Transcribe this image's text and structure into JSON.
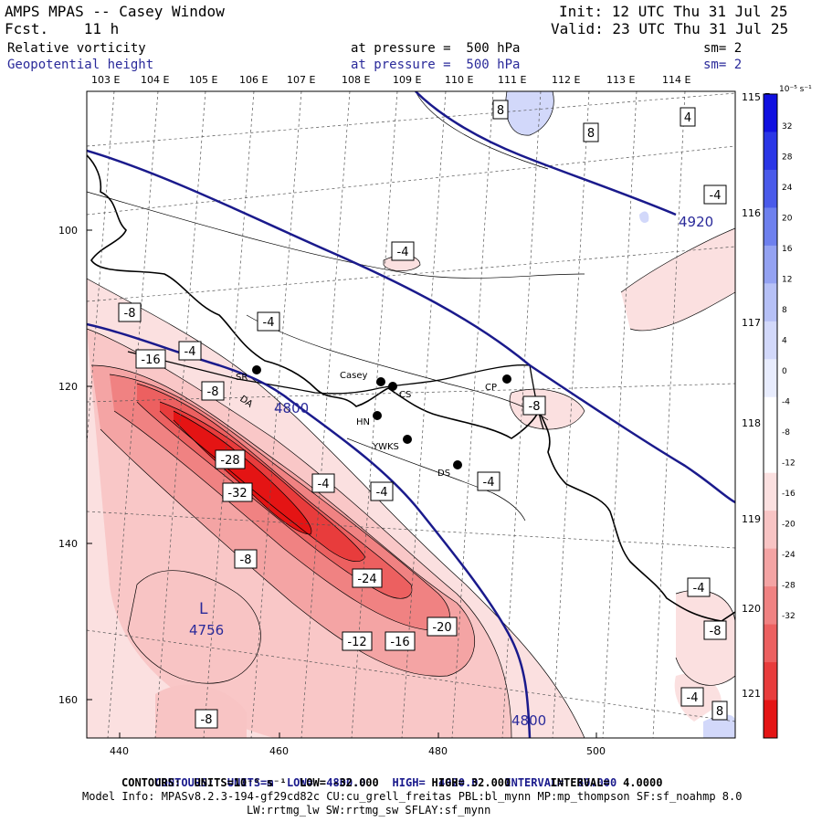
{
  "header": {
    "title": "AMPS MPAS -- Casey Window",
    "fcst": "Fcst.    11 h",
    "init": "Init: 12 UTC Thu 31 Jul 25",
    "valid": "Valid: 23 UTC Thu 31 Jul 25",
    "field1_name": "Relative vorticity",
    "field1_level": "at pressure =  500 hPa",
    "field1_sm": "sm= 2",
    "field2_name": "Geopotential height",
    "field2_level": "at pressure =  500 hPa",
    "field2_sm": "sm= 2"
  },
  "lon_labels_top": [
    "103 E",
    "104 E",
    "105 E",
    "106 E",
    "107 E",
    "108 E",
    "109 E",
    "110 E",
    "111 E",
    "112 E",
    "113 E",
    "114 E"
  ],
  "lon_labels_right": [
    "115 E",
    "116 E",
    "117 E",
    "118 E",
    "119 E",
    "120 E",
    "121 E"
  ],
  "y_ticks": [
    "100",
    "120",
    "140",
    "160"
  ],
  "x_ticks": [
    "440",
    "460",
    "480",
    "500"
  ],
  "colorbar": {
    "unit": "10⁻⁵ s⁻¹",
    "labels": [
      "32",
      "28",
      "24",
      "20",
      "16",
      "12",
      "8",
      "4",
      "0",
      "-4",
      "-8",
      "-12",
      "-16",
      "-20",
      "-24",
      "-28",
      "-32"
    ],
    "colors": [
      "#1010e0",
      "#2a36e6",
      "#4a5aea",
      "#6e80ee",
      "#94a2f2",
      "#b6c0f6",
      "#d2d8fa",
      "#e8ecfd",
      "#ffffff",
      "#ffffff",
      "#fbe0e0",
      "#f8c4c4",
      "#f4a4a4",
      "#f08282",
      "#ec6060",
      "#e83c3c",
      "#e41414"
    ]
  },
  "stations": [
    {
      "name": "Casey"
    },
    {
      "name": "CS"
    },
    {
      "name": "HN"
    },
    {
      "name": "YWKS"
    },
    {
      "name": "DS"
    },
    {
      "name": "CP"
    },
    {
      "name": "SR"
    },
    {
      "name": "DA"
    }
  ],
  "height_contours": [
    "4920",
    "4800",
    "4800"
  ],
  "low_center": {
    "symbol": "L",
    "value": "4756"
  },
  "vort_labels": [
    "8",
    "8",
    "4",
    "-4",
    "-4",
    "-8",
    "-4",
    "-16",
    "-8",
    "-4",
    "-28",
    "-32",
    "-4",
    "-4",
    "-4",
    "-8",
    "-24",
    "-20",
    "-12",
    "-16",
    "-8",
    "-8",
    "-4",
    "-8",
    "-4",
    "8"
  ],
  "footer": {
    "line1_a": "CONTOURS:  UNITS=m  LOW=  4800.0",
    "line1_b": "HIGH=  4920.0",
    "line1_c": "INTERVAL=  60.000",
    "line2": "CONTOURS:  UNITS=10⁻⁵ s⁻¹  LOW= -32.000        HIGH= 32.000      INTERVAL=  4.0000",
    "line3": "Model Info: MPASv8.2.3-194-gf29cd82c CU:cu_grell_freitas PBL:bl_mynn MP:mp_thompson SF:sf_noahmp 8.0",
    "line4": "LW:rrtmg_lw SW:rrtmg_sw SFLAY:sf_mynn"
  }
}
